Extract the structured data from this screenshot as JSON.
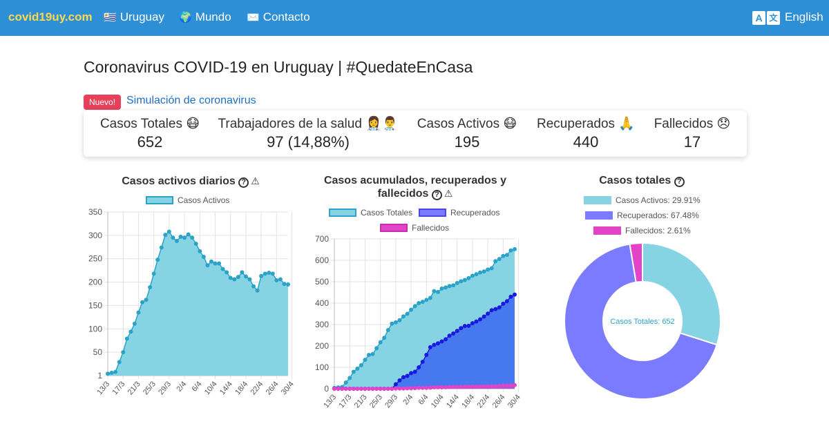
{
  "navbar": {
    "brand": "covid19uy.com",
    "links": [
      {
        "icon": "uruguay-flag-icon",
        "glyph": "🇺🇾",
        "label": "Uruguay"
      },
      {
        "icon": "globe-icon",
        "glyph": "🌍",
        "label": "Mundo"
      },
      {
        "icon": "envelope-icon",
        "glyph": "✉️",
        "label": "Contacto"
      }
    ],
    "language_icon_glyphs": [
      "A",
      "文"
    ],
    "language_label": "English"
  },
  "page": {
    "title": "Coronavirus COVID-19 en Uruguay | #QuedateEnCasa",
    "badge": "Nuevo!",
    "simulation_link": "Simulación de coronavirus"
  },
  "stats": [
    {
      "label": "Casos Totales 😷",
      "value": "652"
    },
    {
      "label": "Trabajadores de la salud 👩‍⚕️👨‍⚕️",
      "value": "97 (14,88%)"
    },
    {
      "label": "Casos Activos 😷",
      "value": "195"
    },
    {
      "label": "Recuperados 🙏",
      "value": "440"
    },
    {
      "label": "Fallecidos 😞",
      "value": "17"
    }
  ],
  "colors": {
    "navbar": "#2d8fd6",
    "brand": "#ffd84d",
    "badge": "#e6405a",
    "activos_fill": "#86d3e4",
    "activos_line": "#2aa3c6",
    "recuperados_fill": "#7a7bff",
    "recuperados_line": "#1a1adf",
    "fallecidos_fill": "#e244c9"
  },
  "chart_data": [
    {
      "type": "area",
      "title": "Casos activos diarios",
      "legend": [
        "Casos Activos"
      ],
      "x_ticks": [
        "13/3",
        "17/3",
        "21/3",
        "25/3",
        "29/3",
        "2/4",
        "6/4",
        "10/4",
        "14/4",
        "18/4",
        "22/4",
        "26/4",
        "30/4"
      ],
      "y_ticks": [
        "350",
        "300",
        "250",
        "200",
        "150",
        "100",
        "50",
        "1"
      ],
      "ylim": [
        0,
        350
      ],
      "series": [
        {
          "name": "Casos Activos",
          "values": [
            4,
            6,
            8,
            29,
            50,
            79,
            94,
            111,
            135,
            157,
            162,
            189,
            218,
            248,
            274,
            301,
            308,
            295,
            288,
            297,
            295,
            302,
            295,
            282,
            266,
            254,
            236,
            244,
            240,
            240,
            228,
            221,
            209,
            206,
            211,
            221,
            212,
            206,
            191,
            182,
            213,
            218,
            220,
            218,
            204,
            206,
            196,
            195
          ]
        }
      ]
    },
    {
      "type": "area",
      "title": "Casos acumulados, recuperados y fallecidos",
      "legend": [
        "Casos Totales",
        "Recuperados",
        "Fallecidos"
      ],
      "x_ticks": [
        "13/3",
        "17/3",
        "21/3",
        "25/3",
        "29/3",
        "2/4",
        "6/4",
        "10/4",
        "14/4",
        "18/4",
        "22/4",
        "26/4",
        "30/4"
      ],
      "y_ticks": [
        "700",
        "600",
        "500",
        "400",
        "300",
        "200",
        "100",
        "0"
      ],
      "ylim": [
        0,
        700
      ],
      "series": [
        {
          "name": "Casos Totales",
          "values": [
            4,
            6,
            8,
            29,
            50,
            79,
            94,
            110,
            135,
            158,
            162,
            189,
            217,
            238,
            274,
            304,
            310,
            320,
            338,
            350,
            369,
            386,
            400,
            406,
            415,
            424,
            456,
            452,
            468,
            473,
            480,
            483,
            494,
            502,
            508,
            517,
            528,
            535,
            543,
            548,
            557,
            563,
            596,
            606,
            620,
            625,
            646,
            652
          ]
        },
        {
          "name": "Recuperados",
          "values": [
            0,
            0,
            0,
            0,
            0,
            0,
            0,
            0,
            0,
            0,
            0,
            0,
            0,
            0,
            0,
            0,
            21,
            39,
            54,
            60,
            73,
            79,
            100,
            126,
            158,
            194,
            205,
            212,
            221,
            231,
            248,
            258,
            270,
            283,
            293,
            294,
            306,
            314,
            324,
            337,
            351,
            367,
            372,
            380,
            397,
            409,
            430,
            440
          ]
        },
        {
          "name": "Fallecidos",
          "values": [
            0,
            0,
            0,
            0,
            0,
            0,
            0,
            0,
            0,
            0,
            0,
            0,
            0,
            0,
            0,
            0,
            1,
            1,
            1,
            2,
            2,
            3,
            4,
            4,
            4,
            5,
            7,
            7,
            7,
            7,
            8,
            9,
            9,
            9,
            9,
            10,
            10,
            10,
            10,
            10,
            11,
            11,
            12,
            12,
            14,
            15,
            15,
            17
          ]
        }
      ]
    },
    {
      "type": "pie",
      "title": "Casos totales",
      "legend": [
        "Casos Activos: 29.91%",
        "Recuperados: 67.48%",
        "Fallecidos: 2.61%"
      ],
      "slices": [
        {
          "name": "Casos Activos",
          "value": 29.91
        },
        {
          "name": "Recuperados",
          "value": 67.48
        },
        {
          "name": "Fallecidos",
          "value": 2.61
        }
      ],
      "center_label": "Casos Totales: 652"
    }
  ]
}
